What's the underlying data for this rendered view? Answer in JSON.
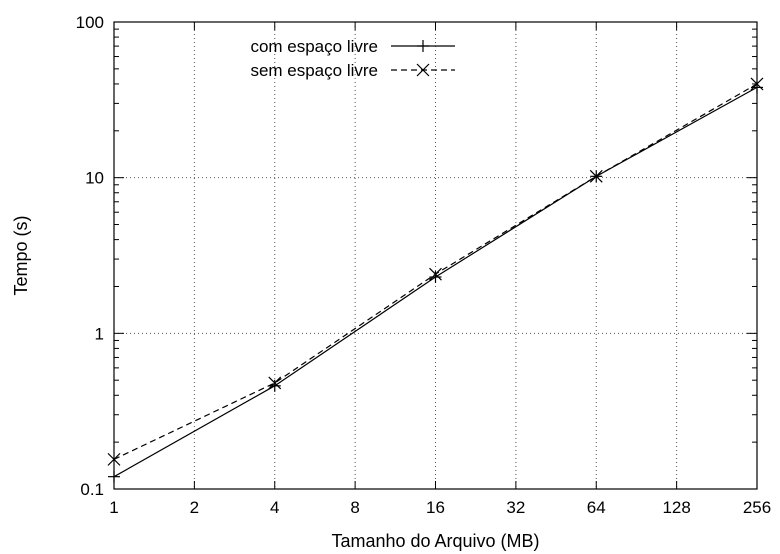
{
  "chart_data": {
    "type": "line",
    "xlabel": "Tamanho do Arquivo (MB)",
    "ylabel": "Tempo (s)",
    "x_scale": "log2",
    "y_scale": "log10",
    "xlim": [
      1,
      256
    ],
    "ylim": [
      0.1,
      100
    ],
    "x_ticks": [
      "1",
      "2",
      "4",
      "8",
      "16",
      "32",
      "64",
      "128",
      "256"
    ],
    "y_ticks": [
      "0.1",
      "1",
      "10",
      "100"
    ],
    "grid": true,
    "legend_position": "top-left",
    "x": [
      1,
      4,
      16,
      64,
      256
    ],
    "series": [
      {
        "name": "com espaço livre",
        "values": [
          0.12,
          0.46,
          2.3,
          10.2,
          38
        ],
        "marker": "plus",
        "line_style": "solid",
        "color": "#000000"
      },
      {
        "name": "sem espaço livre",
        "values": [
          0.155,
          0.48,
          2.4,
          10.2,
          40
        ],
        "marker": "cross",
        "line_style": "dashed",
        "color": "#000000"
      }
    ]
  }
}
